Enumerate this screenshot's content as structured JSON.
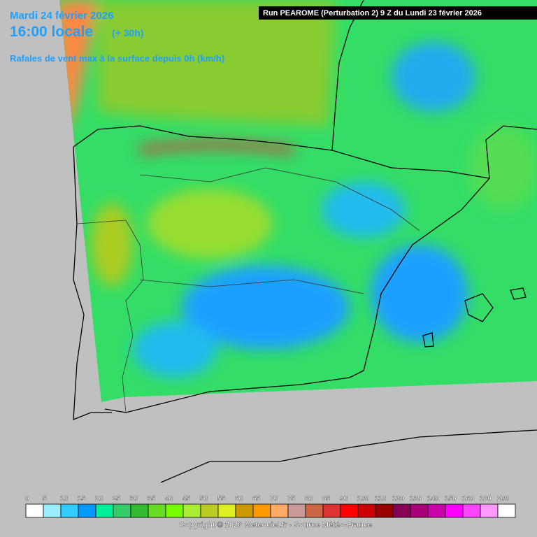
{
  "header": {
    "date": "Mardi 24 février 2026",
    "time": "16:00 locale",
    "offset": "(+ 30h)",
    "subtitle": "Rafales de vent max à la surface depuis 0h (km/h)",
    "run": "Run PEAROME (Perturbation 2) 9 Z du Lundi 23 février 2026"
  },
  "legend": {
    "labels": [
      "0",
      "5",
      "10",
      "15",
      "20",
      "25",
      "30",
      "35",
      "40",
      "45",
      "50",
      "55",
      "60",
      "65",
      "70",
      "75",
      "80",
      "85",
      "90",
      "100",
      "110",
      "120",
      "130",
      "140",
      "150",
      "160",
      "180",
      "200"
    ],
    "colors": [
      "#ffffff",
      "#99eeff",
      "#33ccff",
      "#0099ff",
      "#00ee99",
      "#33cc66",
      "#33bb33",
      "#66dd22",
      "#77ff00",
      "#aaee33",
      "#bbcc22",
      "#ddee22",
      "#cc9900",
      "#ff9900",
      "#ffaa66",
      "#cc9999",
      "#cc6644",
      "#dd3333",
      "#ff0000",
      "#cc0000",
      "#990000",
      "#880055",
      "#aa0077",
      "#cc00aa",
      "#ff00ff",
      "#ff44ff",
      "#ff99ff",
      "#ffffff"
    ]
  },
  "footer": {
    "copyright": "Copyright © 2026 Meteociel.fr - Source Météo-France"
  }
}
